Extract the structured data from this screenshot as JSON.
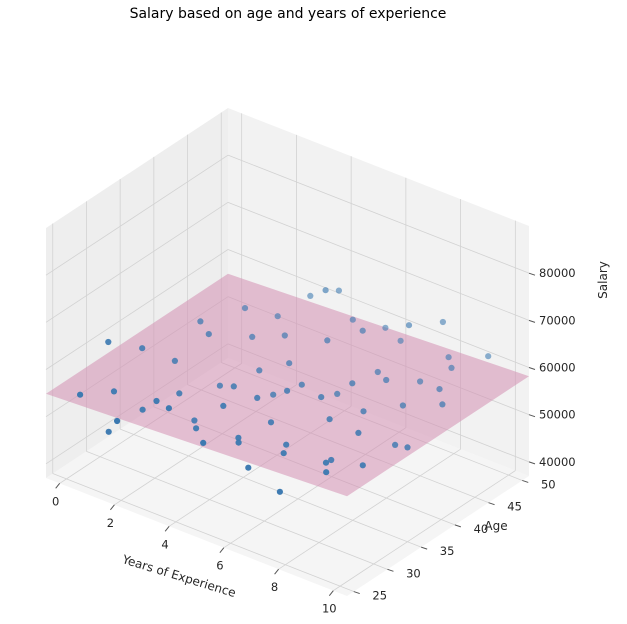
{
  "chart_data": {
    "type": "scatter3d",
    "title": "Salary based on age and years of experience",
    "x_label": "Years of Experience",
    "y_label": "Age",
    "z_label": "Salary",
    "x_ticks": [
      0,
      2,
      4,
      6,
      8,
      10
    ],
    "y_ticks": [
      25,
      30,
      35,
      40,
      45,
      50
    ],
    "z_ticks": [
      40000,
      50000,
      60000,
      70000,
      80000
    ],
    "x_lim": [
      -0.5,
      10.5
    ],
    "y_lim": [
      24,
      51
    ],
    "z_lim": [
      37000,
      90000
    ],
    "colors": {
      "points": "#3a78b0",
      "plane": "#d48fb2",
      "pane": "#f2f2f2",
      "grid": "#d2d2d2"
    },
    "fitted_plane": {
      "intercept": 55000,
      "x_coef": 300,
      "y_coef": 0
    },
    "points": [
      {
        "x": 0.3,
        "y": 30,
        "z": 62000
      },
      {
        "x": 0.5,
        "y": 25,
        "z": 56000
      },
      {
        "x": 0.8,
        "y": 33,
        "z": 59000
      },
      {
        "x": 1.0,
        "y": 28,
        "z": 55000
      },
      {
        "x": 1.2,
        "y": 40,
        "z": 59000
      },
      {
        "x": 1.3,
        "y": 26,
        "z": 49000
      },
      {
        "x": 1.5,
        "y": 35,
        "z": 56000
      },
      {
        "x": 1.6,
        "y": 45,
        "z": 58000
      },
      {
        "x": 1.8,
        "y": 29,
        "z": 52000
      },
      {
        "x": 2.0,
        "y": 38,
        "z": 60000
      },
      {
        "x": 2.1,
        "y": 24,
        "z": 55000
      },
      {
        "x": 2.3,
        "y": 47,
        "z": 56000
      },
      {
        "x": 2.4,
        "y": 32,
        "z": 54000
      },
      {
        "x": 2.6,
        "y": 42,
        "z": 57000
      },
      {
        "x": 2.8,
        "y": 27,
        "z": 58000
      },
      {
        "x": 2.9,
        "y": 36,
        "z": 53000
      },
      {
        "x": 3.0,
        "y": 49,
        "z": 60000
      },
      {
        "x": 3.2,
        "y": 31,
        "z": 51000
      },
      {
        "x": 3.3,
        "y": 44,
        "z": 57000
      },
      {
        "x": 3.5,
        "y": 26,
        "z": 59000
      },
      {
        "x": 3.6,
        "y": 39,
        "z": 55000
      },
      {
        "x": 3.8,
        "y": 50,
        "z": 62000
      },
      {
        "x": 3.9,
        "y": 34,
        "z": 57000
      },
      {
        "x": 4.0,
        "y": 28,
        "z": 54000
      },
      {
        "x": 4.2,
        "y": 41,
        "z": 56000
      },
      {
        "x": 4.3,
        "y": 46,
        "z": 67000
      },
      {
        "x": 4.5,
        "y": 30,
        "z": 58000
      },
      {
        "x": 4.6,
        "y": 37,
        "z": 54000
      },
      {
        "x": 4.8,
        "y": 48,
        "z": 60000
      },
      {
        "x": 5.0,
        "y": 25,
        "z": 56000
      },
      {
        "x": 5.0,
        "y": 33,
        "z": 58000
      },
      {
        "x": 5.1,
        "y": 43,
        "z": 61000
      },
      {
        "x": 5.3,
        "y": 29,
        "z": 54000
      },
      {
        "x": 5.4,
        "y": 38,
        "z": 57000
      },
      {
        "x": 5.5,
        "y": 50,
        "z": 58000
      },
      {
        "x": 5.6,
        "y": 35,
        "z": 59000
      },
      {
        "x": 5.8,
        "y": 27,
        "z": 56000
      },
      {
        "x": 5.9,
        "y": 45,
        "z": 63000
      },
      {
        "x": 6.0,
        "y": 31,
        "z": 57000
      },
      {
        "x": 6.2,
        "y": 40,
        "z": 55000
      },
      {
        "x": 6.3,
        "y": 49,
        "z": 58000
      },
      {
        "x": 6.4,
        "y": 26,
        "z": 53000
      },
      {
        "x": 6.6,
        "y": 36,
        "z": 59000
      },
      {
        "x": 6.7,
        "y": 44,
        "z": 57000
      },
      {
        "x": 6.8,
        "y": 30,
        "z": 55000
      },
      {
        "x": 7.0,
        "y": 39,
        "z": 60000
      },
      {
        "x": 7.1,
        "y": 47,
        "z": 65000
      },
      {
        "x": 7.2,
        "y": 28,
        "z": 56000
      },
      {
        "x": 7.4,
        "y": 34,
        "z": 58000
      },
      {
        "x": 7.5,
        "y": 42,
        "z": 59000
      },
      {
        "x": 7.6,
        "y": 50,
        "z": 64000
      },
      {
        "x": 7.8,
        "y": 25,
        "z": 52000
      },
      {
        "x": 7.9,
        "y": 37,
        "z": 58000
      },
      {
        "x": 8.0,
        "y": 45,
        "z": 57000
      },
      {
        "x": 8.2,
        "y": 31,
        "z": 54000
      },
      {
        "x": 8.3,
        "y": 48,
        "z": 60000
      },
      {
        "x": 8.5,
        "y": 29,
        "z": 56000
      },
      {
        "x": 8.6,
        "y": 40,
        "z": 58000
      },
      {
        "x": 8.7,
        "y": 33,
        "z": 59000
      },
      {
        "x": 8.9,
        "y": 46,
        "z": 61000
      },
      {
        "x": 9.0,
        "y": 27,
        "z": 57000
      },
      {
        "x": 9.2,
        "y": 43,
        "z": 60000
      },
      {
        "x": 9.3,
        "y": 36,
        "z": 55000
      },
      {
        "x": 9.5,
        "y": 49,
        "z": 62000
      },
      {
        "x": 9.6,
        "y": 30,
        "z": 57000
      },
      {
        "x": 9.8,
        "y": 41,
        "z": 60000
      },
      {
        "x": 10.0,
        "y": 35,
        "z": 57000
      }
    ]
  }
}
